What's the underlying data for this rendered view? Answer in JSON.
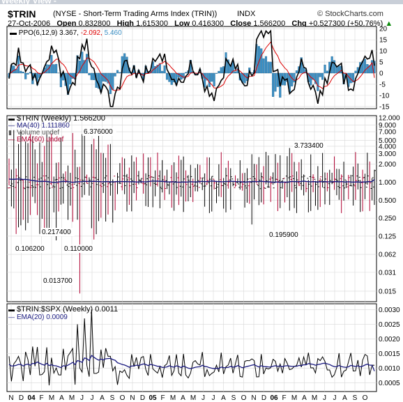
{
  "view_label": "Weekly View -",
  "header": {
    "symbol": "$TRIN",
    "description": "(NYSE - Short-Term Trading Arms Index (TRIN))",
    "exchange": "INDX",
    "date": "27-Oct-2006",
    "open_label": "Open",
    "open": "0.832800",
    "high_label": "High",
    "high": "1.615300",
    "low_label": "Low",
    "low": "0.416300",
    "close_label": "Close",
    "close": "1.566200",
    "chg_label": "Chg",
    "chg": "+0.527300 (+50.76%)",
    "chg_arrow": "▲",
    "watermark": "© StockCharts.com"
  },
  "colors": {
    "price_black": "#000000",
    "ppo_red": "#dd0000",
    "ppo_hist": "#3b8fc4",
    "ema_blue": "#1a1a80",
    "bar_crimson": "#b00030",
    "grid": "#d7d7d7"
  },
  "chart_data": [
    {
      "type": "bar",
      "panel": "PPO",
      "legend": {
        "name": "PPO(6,12,9)",
        "v1": "3.367,",
        "v2": "-2.092,",
        "v3": "5.460"
      },
      "yticks": [
        "20",
        "15",
        "10",
        "5",
        "0",
        "-5",
        "-10",
        "-15"
      ],
      "ylim": [
        -16,
        21
      ],
      "x_range": "Nov 2003 – Oct 2006 (weekly)",
      "last": {
        "ppo": 3.367,
        "signal": -2.092,
        "histogram": 5.46
      }
    },
    {
      "type": "bar",
      "panel": "TRIN price (OHLC, log scale)",
      "legend": [
        {
          "name": "$TRIN (Weekly)",
          "value": "1.566200"
        },
        {
          "name": "MA(40)",
          "value": "1.111860"
        },
        {
          "name": "Volume",
          "value": "undef"
        },
        {
          "name": "EMA(60)",
          "value": "undef"
        }
      ],
      "yticks": [
        "12.000",
        "9.000",
        "7.000",
        "5.000",
        "4.000",
        "3.000",
        "2.000",
        "1.000",
        "0.500",
        "0.250",
        "0.125",
        "0.062",
        "0.031",
        "0.015"
      ],
      "y_scale": "log",
      "ylim": [
        0.01,
        13
      ],
      "annotations": [
        "6.376000",
        "0.217400",
        "0.106200",
        "0.110000",
        "0.013700",
        "3.733400",
        "0.195900"
      ]
    },
    {
      "type": "line",
      "panel": "$TRIN:$SPX ratio",
      "legend": [
        {
          "name": "$TRIN:$SPX (Weekly)",
          "value": "0.0011"
        },
        {
          "name": "EMA(20)",
          "value": "0.0009"
        }
      ],
      "yticks": [
        "0.0030",
        "0.0025",
        "0.0020",
        "0.0015",
        "0.0010",
        "0.0005"
      ],
      "ylim": [
        0.0002,
        0.0032
      ]
    }
  ],
  "x_axis": {
    "labels": [
      "N",
      "D",
      "04",
      "F",
      "M",
      "A",
      "M",
      "J",
      "J",
      "A",
      "S",
      "O",
      "N",
      "D",
      "05",
      "F",
      "M",
      "A",
      "M",
      "J",
      "J",
      "A",
      "S",
      "O",
      "N",
      "D",
      "06",
      "F",
      "M",
      "A",
      "M",
      "J",
      "J",
      "A",
      "S",
      "O"
    ]
  }
}
